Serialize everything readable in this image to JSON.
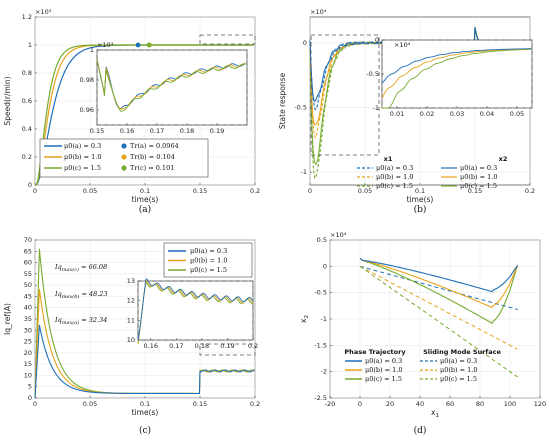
{
  "colors": {
    "a": "#1f6fb8",
    "b": "#e8a21a",
    "c": "#76ab2f"
  },
  "chart_data": [
    {
      "id": "a",
      "type": "line",
      "caption": "(a)",
      "xlabel": "time(s)",
      "ylabel": "Speed(r/min)",
      "exponent": "×10³",
      "xlim": [
        0,
        0.2
      ],
      "ylim": [
        0,
        1.2
      ],
      "xticks": [
        "0",
        "0.05",
        "0.1",
        "0.15",
        "0.2"
      ],
      "yticks": [
        "0",
        "0.2",
        "0.4",
        "0.6",
        "0.8",
        "1",
        "1.2"
      ],
      "series": [
        {
          "name": "μ0(a) = 0.3",
          "time_constant": 0.0085
        },
        {
          "name": "μ0(b) = 1.0",
          "time_constant": 0.0065
        },
        {
          "name": "μ0(c) = 1.5",
          "time_constant": 0.0055
        }
      ],
      "markers": [
        {
          "name": "Tr(a) = 0.0964",
          "x": 0.0964,
          "y": 1.0
        },
        {
          "name": "Tr(b) = 0.104",
          "x": 0.104,
          "y": 1.0
        },
        {
          "name": "Tr(c) = 0.101",
          "x": 0.101,
          "y": 1.0
        }
      ],
      "inset": {
        "exponent": "×10³",
        "xlim": [
          0.15,
          0.2
        ],
        "ylim": [
          0.95,
          1.0
        ],
        "xticks": [
          "0.15",
          "0.16",
          "0.17",
          "0.18",
          "0.19"
        ],
        "yticks": [
          "0.96",
          "0.98",
          "1"
        ]
      }
    },
    {
      "id": "b",
      "type": "line",
      "caption": "(b)",
      "xlabel": "time(s)",
      "ylabel": "State response",
      "exponent": "×10⁴",
      "xlim": [
        0,
        0.2
      ],
      "ylim": [
        -1.1,
        0.2
      ],
      "xticks": [
        "0",
        "0.05",
        "0.1",
        "0.15",
        "0.2"
      ],
      "yticks": [
        "-1",
        "-0.5",
        "0"
      ],
      "legend_headers": [
        "x1",
        "x2"
      ],
      "series_x1": [
        {
          "name": "μ0(a) = 0.3",
          "min": -0.5
        },
        {
          "name": "μ0(b) = 1.0",
          "min": -0.72
        },
        {
          "name": "μ0(c) = 1.5",
          "min": -1.05
        }
      ],
      "series_x2": [
        {
          "name": "μ0(a) = 0.3",
          "min": -0.45
        },
        {
          "name": "μ0(b) = 1.0",
          "min": -0.65
        },
        {
          "name": "μ0(c) = 1.5",
          "min": -0.95
        }
      ],
      "inset": {
        "exponent": "×10⁴",
        "xlim": [
          0.005,
          0.055
        ],
        "ylim": [
          -1.0,
          0.0
        ],
        "xticks": [
          "0.01",
          "0.02",
          "0.03",
          "0.04",
          "0.05"
        ],
        "yticks": [
          "-1",
          "-0.5",
          "0"
        ]
      }
    },
    {
      "id": "c",
      "type": "line",
      "caption": "(c)",
      "xlabel": "time(s)",
      "ylabel": "Iq_ref(A)",
      "xlim": [
        0,
        0.2
      ],
      "ylim": [
        0,
        70
      ],
      "xticks": [
        "0",
        "0.05",
        "0.1",
        "0.15",
        "0.2"
      ],
      "yticks": [
        "0",
        "5",
        "10",
        "15",
        "20",
        "25",
        "30",
        "35",
        "40",
        "45",
        "50",
        "55",
        "60",
        "65",
        "70"
      ],
      "annotations": [
        {
          "label": "Iq",
          "sub": "max(c)",
          "value": "= 66.08",
          "y": 66.08
        },
        {
          "label": "Iq",
          "sub": "max(b)",
          "value": "= 48.23",
          "y": 48.23
        },
        {
          "label": "Iq",
          "sub": "max(a)",
          "value": "= 32.34",
          "y": 32.34
        }
      ],
      "series": [
        {
          "name": "μ0(a) = 0.3",
          "peak": 32.34
        },
        {
          "name": "μ0(b) = 1.0",
          "peak": 48.23
        },
        {
          "name": "μ0(c) = 1.5",
          "peak": 66.08
        }
      ],
      "inset": {
        "xlim": [
          0.155,
          0.2
        ],
        "ylim": [
          10,
          13
        ],
        "xticks": [
          "0.16",
          "0.17",
          "0.18",
          "0.19",
          "0.2"
        ],
        "yticks": [
          "10",
          "11",
          "12",
          "13"
        ]
      }
    },
    {
      "id": "d",
      "type": "line",
      "caption": "(d)",
      "xlabel": "x1",
      "ylabel": "x2",
      "exponent": "×10⁴",
      "xlim": [
        -20,
        120
      ],
      "ylim": [
        -2.5,
        0.5
      ],
      "xticks": [
        "-20",
        "0",
        "20",
        "40",
        "60",
        "80",
        "100",
        "120"
      ],
      "yticks": [
        "-2.5",
        "-2",
        "-1.5",
        "-1",
        "-0.5",
        "0",
        "0.5"
      ],
      "legend_headers": [
        "Phase Trajectory",
        "Sliding Mode Surface"
      ],
      "trajectory": [
        {
          "name": "μ0(a) = 0.3",
          "min": -0.45
        },
        {
          "name": "μ0(b) = 1.0",
          "min": -0.75
        },
        {
          "name": "μ0(c) = 1.5",
          "min": -1.05
        }
      ],
      "surface": [
        {
          "name": "μ0(a) = 0.3",
          "slope": -0.0078
        },
        {
          "name": "μ0(b) = 1.0",
          "slope": -0.015
        },
        {
          "name": "μ0(c) = 1.5",
          "slope": -0.02
        }
      ]
    }
  ]
}
